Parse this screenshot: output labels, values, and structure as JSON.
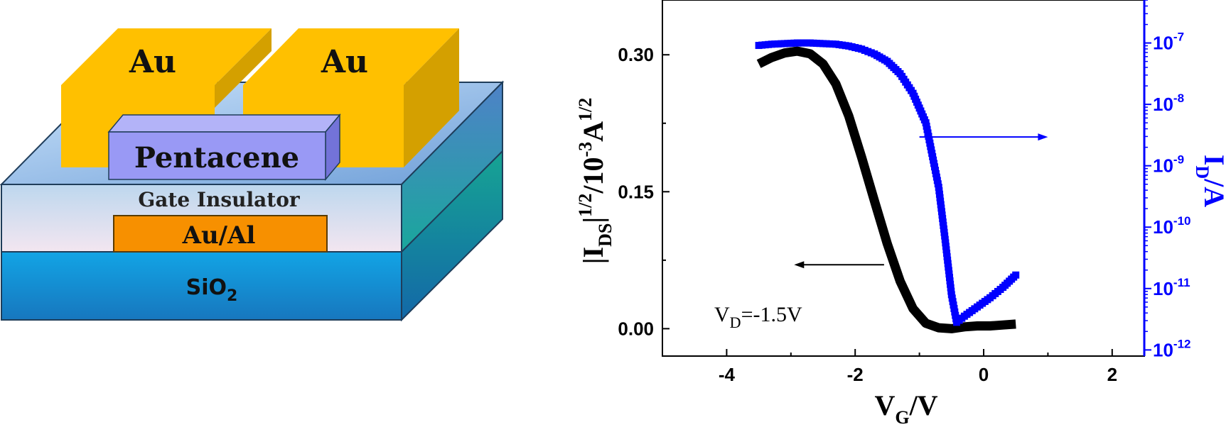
{
  "device": {
    "electrode_left": "Au",
    "electrode_right": "Au",
    "semiconductor": "Pentacene",
    "insulator": "Gate Insulator",
    "gate": "Au/Al",
    "substrate_main": "SiO",
    "substrate_sub": "2",
    "colors": {
      "gold": "#FFC000",
      "pentacene": "#9999F5",
      "insulator_top": "#A9CDF0",
      "gate": "#F79000",
      "substrate": "#1C9CD8"
    }
  },
  "chart_data": {
    "type": "scatter",
    "xlabel_main": "V",
    "xlabel_sub": "G",
    "xlabel_tail": "/V",
    "ylabel_left": "|I|DS^1/2 /10^-3 A^1/2",
    "ylabel_right": "I_D/A",
    "xlim": [
      -5,
      2.5
    ],
    "ylim_left": [
      -0.03,
      0.36
    ],
    "ylim_right_log10": [
      -12.1,
      -6.3
    ],
    "xticks": [
      -4,
      -2,
      0,
      2
    ],
    "xtick_labels": [
      "-4",
      "-2",
      "0",
      "2"
    ],
    "yticks_left": [
      0.0,
      0.15,
      0.3
    ],
    "ytick_labels_left": [
      "0.00",
      "0.15",
      "0.30"
    ],
    "yticks_right_exp": [
      -12,
      -11,
      -10,
      -9,
      -8,
      -7
    ],
    "annotation_main": "V",
    "annotation_sub": "D",
    "annotation_tail": "=-1.5V",
    "series": [
      {
        "axis": "left",
        "color": "#000000",
        "x": [
          -3.5,
          -3.3,
          -3.1,
          -2.9,
          -2.7,
          -2.5,
          -2.3,
          -2.1,
          -1.9,
          -1.7,
          -1.5,
          -1.3,
          -1.1,
          -0.9,
          -0.7,
          -0.5,
          -0.3,
          -0.1,
          0.1,
          0.3,
          0.5
        ],
        "y": [
          0.29,
          0.297,
          0.302,
          0.304,
          0.301,
          0.29,
          0.268,
          0.233,
          0.188,
          0.14,
          0.093,
          0.052,
          0.022,
          0.006,
          0.001,
          0.0,
          0.002,
          0.003,
          0.003,
          0.004,
          0.005
        ]
      },
      {
        "axis": "right",
        "color": "#0000FF",
        "x": [
          -3.5,
          -3.3,
          -3.1,
          -2.9,
          -2.7,
          -2.5,
          -2.3,
          -2.1,
          -1.9,
          -1.7,
          -1.5,
          -1.3,
          -1.1,
          -0.9,
          -0.7,
          -0.6,
          -0.5,
          -0.42,
          -0.3,
          -0.1,
          0.1,
          0.3,
          0.5
        ],
        "y_log10": [
          -7.04,
          -7.02,
          -7.01,
          -7.0,
          -7.0,
          -7.01,
          -7.02,
          -7.05,
          -7.1,
          -7.18,
          -7.3,
          -7.5,
          -7.82,
          -8.3,
          -9.35,
          -10.2,
          -11.1,
          -11.55,
          -11.45,
          -11.3,
          -11.15,
          -10.98,
          -10.78
        ]
      }
    ],
    "arrows": [
      {
        "direction": "left",
        "y": 0.07,
        "x_from": -1.55,
        "x_to": -2.95
      },
      {
        "direction": "right",
        "y": 0.21,
        "x_from": 1.0,
        "x_to": -1.0
      }
    ]
  }
}
